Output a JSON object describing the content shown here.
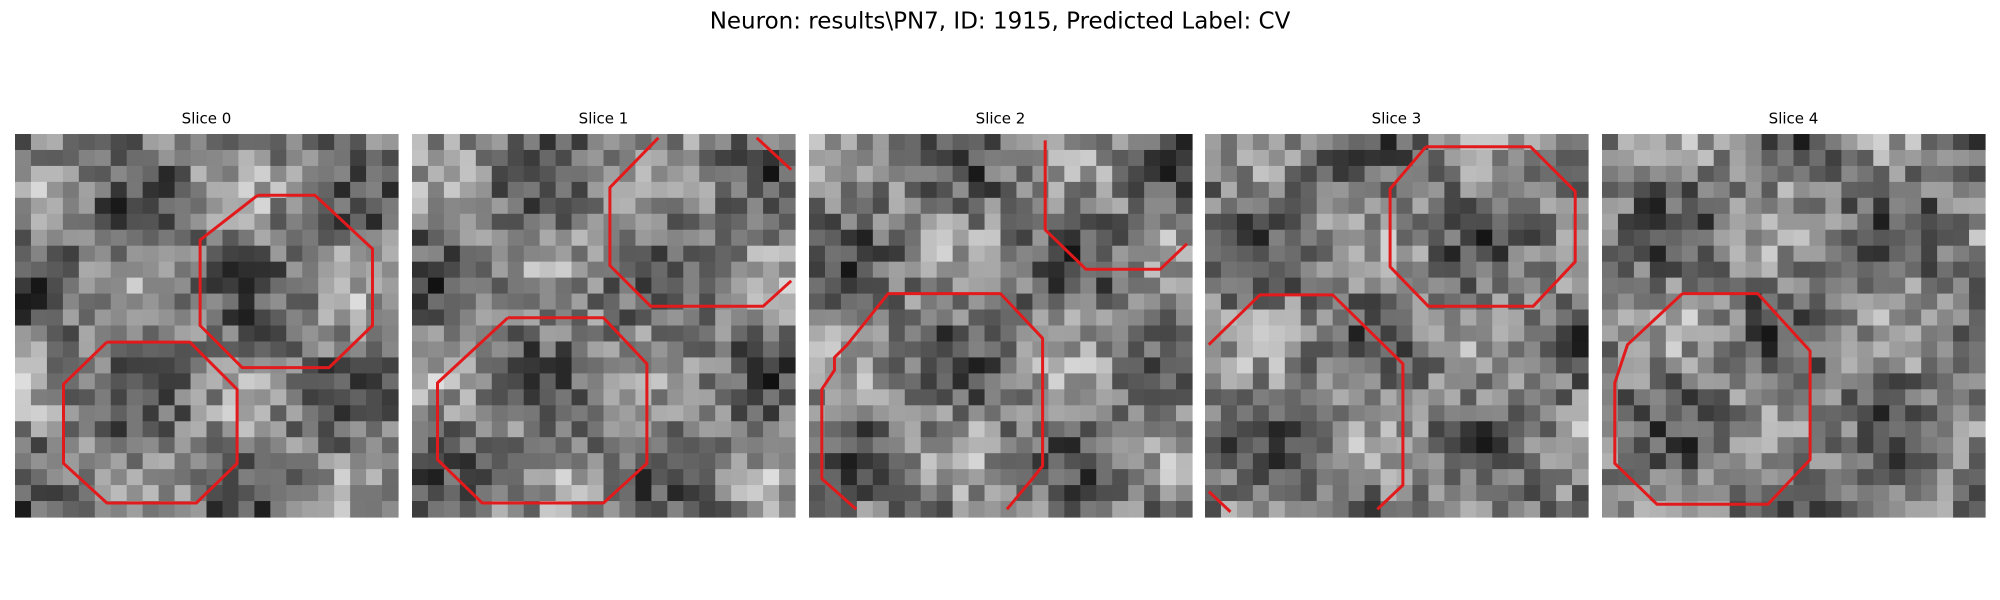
{
  "title": "Neuron: results\\PN7, ID: 1915, Predicted Label: CV",
  "panels": [
    {
      "title": "Slice 0"
    },
    {
      "title": "Slice 1"
    },
    {
      "title": "Slice 2"
    },
    {
      "title": "Slice 3"
    },
    {
      "title": "Slice 4"
    }
  ]
}
